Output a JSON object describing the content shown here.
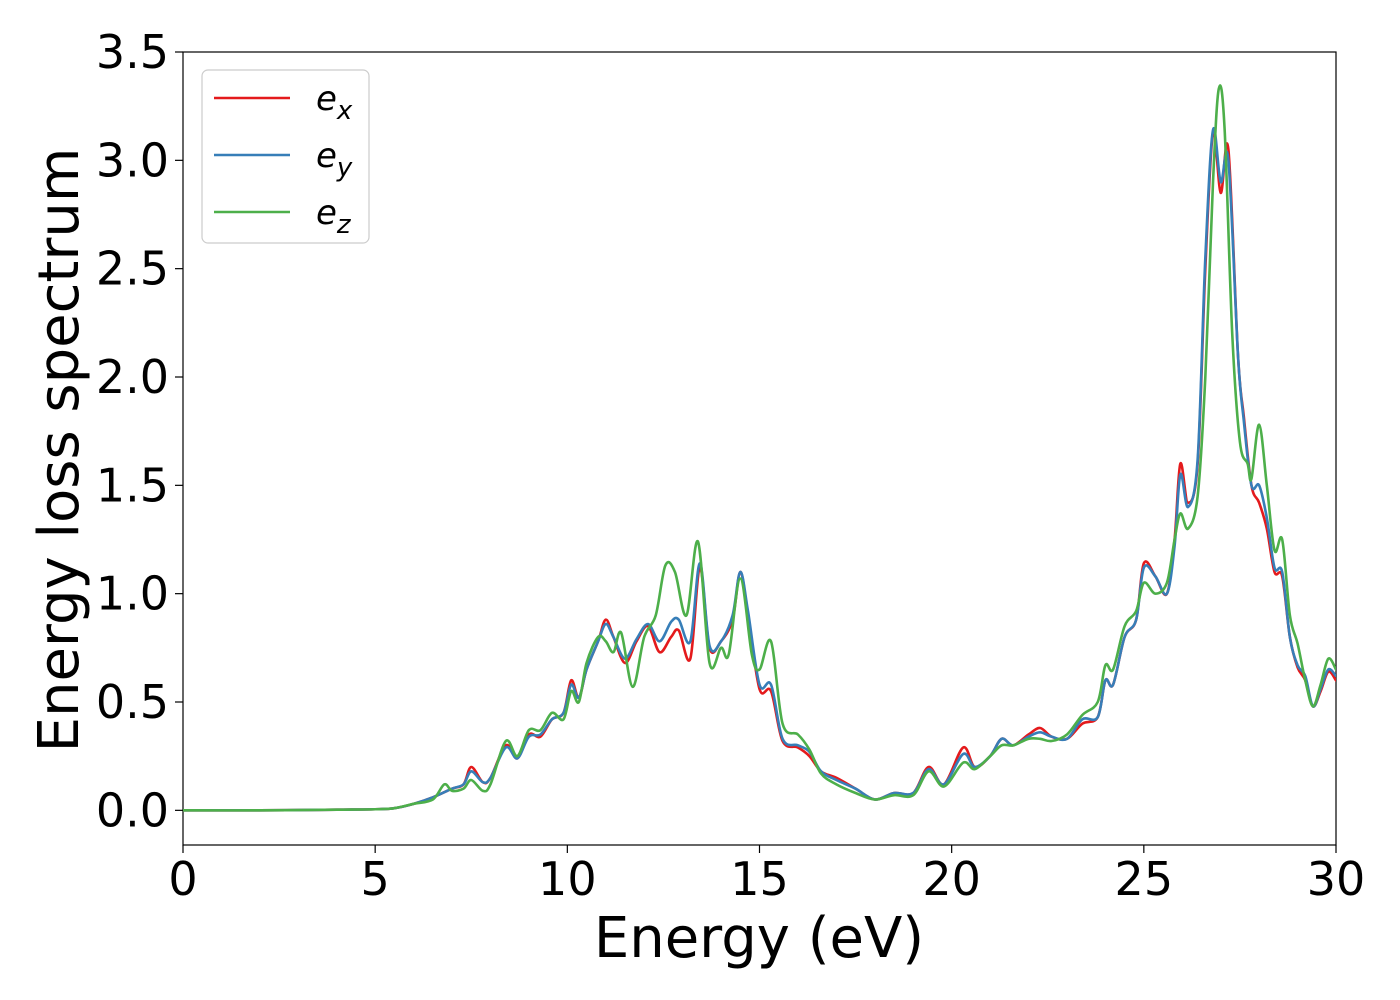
{
  "chart_data": {
    "type": "line",
    "xlabel": "Energy (eV)",
    "ylabel": "Energy loss spectrum",
    "xlim": [
      0,
      30
    ],
    "ylim": [
      -0.16,
      3.5
    ],
    "xticks": [
      0,
      5,
      10,
      15,
      20,
      25,
      30
    ],
    "xtick_labels": [
      "0",
      "5",
      "10",
      "15",
      "20",
      "25",
      "30"
    ],
    "yticks": [
      0.0,
      0.5,
      1.0,
      1.5,
      2.0,
      2.5,
      3.0,
      3.5
    ],
    "ytick_labels": [
      "0.0",
      "0.5",
      "1.0",
      "1.5",
      "2.0",
      "2.5",
      "3.0",
      "3.5"
    ],
    "grid": false,
    "legend_position": "top-left",
    "series": [
      {
        "name": "e",
        "subscript": "x",
        "color": "#e41a1c",
        "points": [
          [
            0,
            0
          ],
          [
            2,
            0.0
          ],
          [
            4,
            0.003
          ],
          [
            5,
            0.005
          ],
          [
            5.5,
            0.01
          ],
          [
            6,
            0.03
          ],
          [
            6.5,
            0.06
          ],
          [
            7,
            0.1
          ],
          [
            7.3,
            0.12
          ],
          [
            7.5,
            0.2
          ],
          [
            7.8,
            0.13
          ],
          [
            8,
            0.15
          ],
          [
            8.4,
            0.3
          ],
          [
            8.7,
            0.24
          ],
          [
            9,
            0.35
          ],
          [
            9.3,
            0.34
          ],
          [
            9.6,
            0.42
          ],
          [
            9.9,
            0.45
          ],
          [
            10.1,
            0.6
          ],
          [
            10.3,
            0.52
          ],
          [
            10.5,
            0.65
          ],
          [
            10.8,
            0.78
          ],
          [
            11,
            0.88
          ],
          [
            11.2,
            0.8
          ],
          [
            11.5,
            0.68
          ],
          [
            11.8,
            0.78
          ],
          [
            12.1,
            0.85
          ],
          [
            12.4,
            0.73
          ],
          [
            12.7,
            0.8
          ],
          [
            12.9,
            0.83
          ],
          [
            13.2,
            0.7
          ],
          [
            13.45,
            1.12
          ],
          [
            13.7,
            0.75
          ],
          [
            14,
            0.78
          ],
          [
            14.3,
            0.88
          ],
          [
            14.5,
            1.1
          ],
          [
            14.7,
            0.9
          ],
          [
            15,
            0.56
          ],
          [
            15.3,
            0.55
          ],
          [
            15.6,
            0.32
          ],
          [
            16,
            0.29
          ],
          [
            16.3,
            0.25
          ],
          [
            16.6,
            0.18
          ],
          [
            17,
            0.15
          ],
          [
            17.5,
            0.1
          ],
          [
            18,
            0.05
          ],
          [
            18.5,
            0.08
          ],
          [
            19,
            0.08
          ],
          [
            19.4,
            0.2
          ],
          [
            19.8,
            0.12
          ],
          [
            20.3,
            0.29
          ],
          [
            20.6,
            0.2
          ],
          [
            21,
            0.25
          ],
          [
            21.3,
            0.33
          ],
          [
            21.6,
            0.3
          ],
          [
            22,
            0.35
          ],
          [
            22.3,
            0.38
          ],
          [
            22.6,
            0.34
          ],
          [
            23,
            0.33
          ],
          [
            23.4,
            0.4
          ],
          [
            23.8,
            0.43
          ],
          [
            24,
            0.6
          ],
          [
            24.2,
            0.58
          ],
          [
            24.5,
            0.8
          ],
          [
            24.8,
            0.88
          ],
          [
            25,
            1.14
          ],
          [
            25.3,
            1.08
          ],
          [
            25.6,
            1.0
          ],
          [
            25.8,
            1.25
          ],
          [
            25.95,
            1.6
          ],
          [
            26.15,
            1.42
          ],
          [
            26.4,
            1.6
          ],
          [
            26.6,
            2.5
          ],
          [
            26.8,
            3.13
          ],
          [
            27,
            2.85
          ],
          [
            27.2,
            3.05
          ],
          [
            27.45,
            2.1
          ],
          [
            27.6,
            1.82
          ],
          [
            27.8,
            1.5
          ],
          [
            28,
            1.42
          ],
          [
            28.2,
            1.3
          ],
          [
            28.4,
            1.1
          ],
          [
            28.6,
            1.08
          ],
          [
            28.8,
            0.8
          ],
          [
            29,
            0.66
          ],
          [
            29.2,
            0.6
          ],
          [
            29.4,
            0.48
          ],
          [
            29.6,
            0.55
          ],
          [
            29.8,
            0.64
          ],
          [
            30,
            0.6
          ]
        ]
      },
      {
        "name": "e",
        "subscript": "y",
        "color": "#377eb8",
        "points": [
          [
            0,
            0
          ],
          [
            2,
            0.0
          ],
          [
            4,
            0.003
          ],
          [
            5,
            0.005
          ],
          [
            5.5,
            0.01
          ],
          [
            6,
            0.03
          ],
          [
            6.5,
            0.06
          ],
          [
            7,
            0.1
          ],
          [
            7.3,
            0.12
          ],
          [
            7.5,
            0.18
          ],
          [
            7.8,
            0.13
          ],
          [
            8,
            0.15
          ],
          [
            8.4,
            0.29
          ],
          [
            8.7,
            0.24
          ],
          [
            9,
            0.34
          ],
          [
            9.3,
            0.35
          ],
          [
            9.6,
            0.42
          ],
          [
            9.9,
            0.45
          ],
          [
            10.1,
            0.58
          ],
          [
            10.3,
            0.52
          ],
          [
            10.5,
            0.65
          ],
          [
            10.8,
            0.78
          ],
          [
            11,
            0.86
          ],
          [
            11.2,
            0.8
          ],
          [
            11.5,
            0.7
          ],
          [
            11.8,
            0.79
          ],
          [
            12.1,
            0.86
          ],
          [
            12.4,
            0.78
          ],
          [
            12.7,
            0.87
          ],
          [
            12.9,
            0.88
          ],
          [
            13.2,
            0.78
          ],
          [
            13.45,
            1.14
          ],
          [
            13.7,
            0.76
          ],
          [
            14,
            0.78
          ],
          [
            14.3,
            0.9
          ],
          [
            14.5,
            1.1
          ],
          [
            14.7,
            0.92
          ],
          [
            15,
            0.58
          ],
          [
            15.3,
            0.58
          ],
          [
            15.6,
            0.33
          ],
          [
            16,
            0.3
          ],
          [
            16.3,
            0.27
          ],
          [
            16.6,
            0.18
          ],
          [
            17,
            0.14
          ],
          [
            17.5,
            0.1
          ],
          [
            18,
            0.05
          ],
          [
            18.5,
            0.08
          ],
          [
            19,
            0.08
          ],
          [
            19.4,
            0.19
          ],
          [
            19.8,
            0.12
          ],
          [
            20.3,
            0.26
          ],
          [
            20.6,
            0.2
          ],
          [
            21,
            0.25
          ],
          [
            21.3,
            0.33
          ],
          [
            21.6,
            0.3
          ],
          [
            22,
            0.34
          ],
          [
            22.3,
            0.36
          ],
          [
            22.6,
            0.34
          ],
          [
            23,
            0.33
          ],
          [
            23.4,
            0.42
          ],
          [
            23.8,
            0.43
          ],
          [
            24,
            0.6
          ],
          [
            24.2,
            0.58
          ],
          [
            24.5,
            0.8
          ],
          [
            24.8,
            0.88
          ],
          [
            25,
            1.12
          ],
          [
            25.3,
            1.08
          ],
          [
            25.6,
            1.0
          ],
          [
            25.8,
            1.22
          ],
          [
            25.95,
            1.55
          ],
          [
            26.15,
            1.4
          ],
          [
            26.4,
            1.62
          ],
          [
            26.6,
            2.55
          ],
          [
            26.8,
            3.14
          ],
          [
            27,
            2.9
          ],
          [
            27.2,
            3.0
          ],
          [
            27.45,
            2.1
          ],
          [
            27.6,
            1.8
          ],
          [
            27.8,
            1.5
          ],
          [
            28,
            1.5
          ],
          [
            28.2,
            1.35
          ],
          [
            28.4,
            1.12
          ],
          [
            28.6,
            1.1
          ],
          [
            28.8,
            0.8
          ],
          [
            29,
            0.67
          ],
          [
            29.2,
            0.62
          ],
          [
            29.4,
            0.48
          ],
          [
            29.6,
            0.56
          ],
          [
            29.8,
            0.65
          ],
          [
            30,
            0.62
          ]
        ]
      },
      {
        "name": "e",
        "subscript": "z",
        "color": "#4daf4a",
        "points": [
          [
            0,
            0
          ],
          [
            2,
            0.0
          ],
          [
            4,
            0.003
          ],
          [
            5,
            0.005
          ],
          [
            5.5,
            0.01
          ],
          [
            6,
            0.03
          ],
          [
            6.5,
            0.05
          ],
          [
            6.8,
            0.12
          ],
          [
            7,
            0.09
          ],
          [
            7.3,
            0.1
          ],
          [
            7.5,
            0.14
          ],
          [
            7.8,
            0.09
          ],
          [
            8,
            0.12
          ],
          [
            8.4,
            0.32
          ],
          [
            8.7,
            0.25
          ],
          [
            9,
            0.37
          ],
          [
            9.3,
            0.37
          ],
          [
            9.6,
            0.45
          ],
          [
            9.9,
            0.42
          ],
          [
            10.1,
            0.55
          ],
          [
            10.3,
            0.5
          ],
          [
            10.5,
            0.68
          ],
          [
            10.8,
            0.8
          ],
          [
            11,
            0.78
          ],
          [
            11.2,
            0.73
          ],
          [
            11.4,
            0.82
          ],
          [
            11.7,
            0.57
          ],
          [
            12,
            0.8
          ],
          [
            12.3,
            0.9
          ],
          [
            12.55,
            1.13
          ],
          [
            12.8,
            1.1
          ],
          [
            13.1,
            0.9
          ],
          [
            13.4,
            1.24
          ],
          [
            13.7,
            0.68
          ],
          [
            14,
            0.75
          ],
          [
            14.2,
            0.72
          ],
          [
            14.5,
            1.07
          ],
          [
            14.8,
            0.72
          ],
          [
            15,
            0.65
          ],
          [
            15.3,
            0.78
          ],
          [
            15.6,
            0.4
          ],
          [
            16,
            0.35
          ],
          [
            16.3,
            0.28
          ],
          [
            16.6,
            0.17
          ],
          [
            17,
            0.12
          ],
          [
            17.5,
            0.08
          ],
          [
            18,
            0.05
          ],
          [
            18.5,
            0.07
          ],
          [
            19,
            0.07
          ],
          [
            19.4,
            0.18
          ],
          [
            19.8,
            0.11
          ],
          [
            20.3,
            0.22
          ],
          [
            20.6,
            0.19
          ],
          [
            21,
            0.25
          ],
          [
            21.3,
            0.3
          ],
          [
            21.6,
            0.3
          ],
          [
            22,
            0.33
          ],
          [
            22.3,
            0.33
          ],
          [
            22.6,
            0.32
          ],
          [
            23,
            0.35
          ],
          [
            23.4,
            0.44
          ],
          [
            23.8,
            0.5
          ],
          [
            24,
            0.67
          ],
          [
            24.2,
            0.65
          ],
          [
            24.5,
            0.85
          ],
          [
            24.8,
            0.92
          ],
          [
            25,
            1.05
          ],
          [
            25.3,
            1.0
          ],
          [
            25.6,
            1.05
          ],
          [
            25.8,
            1.25
          ],
          [
            25.95,
            1.37
          ],
          [
            26.15,
            1.3
          ],
          [
            26.4,
            1.45
          ],
          [
            26.6,
            2.0
          ],
          [
            26.8,
            2.9
          ],
          [
            26.95,
            3.33
          ],
          [
            27.1,
            3.15
          ],
          [
            27.3,
            2.2
          ],
          [
            27.5,
            1.7
          ],
          [
            27.7,
            1.6
          ],
          [
            27.8,
            1.53
          ],
          [
            28,
            1.78
          ],
          [
            28.2,
            1.5
          ],
          [
            28.4,
            1.2
          ],
          [
            28.6,
            1.25
          ],
          [
            28.8,
            0.9
          ],
          [
            29,
            0.77
          ],
          [
            29.2,
            0.6
          ],
          [
            29.4,
            0.48
          ],
          [
            29.6,
            0.58
          ],
          [
            29.8,
            0.7
          ],
          [
            30,
            0.65
          ]
        ]
      }
    ]
  }
}
